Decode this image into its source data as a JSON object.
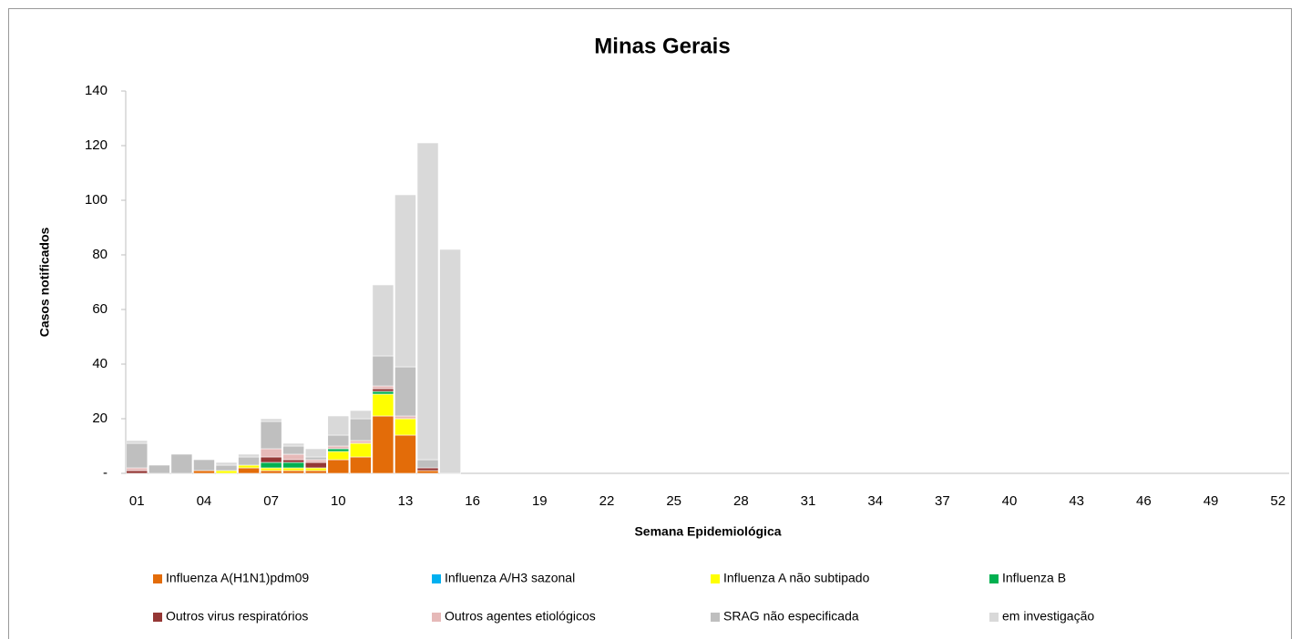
{
  "chart_data": {
    "type": "stacked_bar",
    "title": "Minas Gerais",
    "y_label": "Casos notificados",
    "x_label": "Semana Epidemiológica",
    "categories": [
      "01",
      null,
      null,
      "04",
      null,
      null,
      "07",
      null,
      null,
      "10",
      null,
      null,
      "13",
      null,
      null,
      "16",
      null,
      null,
      "19",
      null,
      null,
      "22",
      null,
      null,
      "25",
      null,
      null,
      "28",
      null,
      null,
      "31",
      null,
      null,
      "34",
      null,
      null,
      "37",
      null,
      null,
      "40",
      null,
      null,
      "43",
      null,
      null,
      "46",
      null,
      null,
      "49",
      null,
      null,
      "52"
    ],
    "ylim": [
      0,
      140
    ],
    "yticks": [
      {
        "value": 0,
        "label": "-"
      },
      20,
      40,
      60,
      80,
      100,
      120,
      140
    ],
    "series": [
      {
        "name": "Influenza A(H1N1)pdm09",
        "color": "#e36c09",
        "values": [
          0,
          0,
          0,
          1,
          0,
          2,
          1,
          1,
          1,
          5,
          6,
          21,
          14,
          1,
          0,
          null,
          null,
          null,
          null,
          null,
          null,
          null,
          null,
          null,
          null,
          null,
          null,
          null,
          null,
          null,
          null,
          null,
          null,
          null,
          null,
          null,
          null,
          null,
          null,
          null,
          null,
          null,
          null,
          null,
          null,
          null,
          null,
          null,
          null,
          null,
          null,
          null
        ]
      },
      {
        "name": "Influenza A/H3 sazonal",
        "color": "#00b0f0",
        "values": [
          0,
          0,
          0,
          0,
          0,
          0,
          0,
          0,
          0,
          0,
          0,
          0,
          0,
          0,
          0,
          null,
          null,
          null,
          null,
          null,
          null,
          null,
          null,
          null,
          null,
          null,
          null,
          null,
          null,
          null,
          null,
          null,
          null,
          null,
          null,
          null,
          null,
          null,
          null,
          null,
          null,
          null,
          null,
          null,
          null,
          null,
          null,
          null,
          null,
          null,
          null,
          null
        ]
      },
      {
        "name": "Influenza A não subtipado",
        "color": "#ffff00",
        "values": [
          0,
          0,
          0,
          0,
          1,
          1,
          1,
          1,
          1,
          3,
          5,
          8,
          6,
          0,
          0,
          null,
          null,
          null,
          null,
          null,
          null,
          null,
          null,
          null,
          null,
          null,
          null,
          null,
          null,
          null,
          null,
          null,
          null,
          null,
          null,
          null,
          null,
          null,
          null,
          null,
          null,
          null,
          null,
          null,
          null,
          null,
          null,
          null,
          null,
          null,
          null,
          null
        ]
      },
      {
        "name": "Influenza B",
        "color": "#00b050",
        "values": [
          0,
          0,
          0,
          0,
          0,
          0,
          2,
          2,
          0,
          1,
          0,
          1,
          0,
          0,
          0,
          null,
          null,
          null,
          null,
          null,
          null,
          null,
          null,
          null,
          null,
          null,
          null,
          null,
          null,
          null,
          null,
          null,
          null,
          null,
          null,
          null,
          null,
          null,
          null,
          null,
          null,
          null,
          null,
          null,
          null,
          null,
          null,
          null,
          null,
          null,
          null,
          null
        ]
      },
      {
        "name": "Outros virus respiratórios",
        "color": "#953735",
        "values": [
          1,
          0,
          0,
          0,
          0,
          0,
          2,
          1,
          2,
          0,
          0,
          1,
          0,
          1,
          0,
          null,
          null,
          null,
          null,
          null,
          null,
          null,
          null,
          null,
          null,
          null,
          null,
          null,
          null,
          null,
          null,
          null,
          null,
          null,
          null,
          null,
          null,
          null,
          null,
          null,
          null,
          null,
          null,
          null,
          null,
          null,
          null,
          null,
          null,
          null,
          null,
          null
        ]
      },
      {
        "name": "Outros agentes etiológicos",
        "color": "#e6b9b8",
        "values": [
          1,
          0,
          0,
          0,
          0,
          0,
          3,
          2,
          1,
          1,
          1,
          1,
          1,
          0,
          0,
          null,
          null,
          null,
          null,
          null,
          null,
          null,
          null,
          null,
          null,
          null,
          null,
          null,
          null,
          null,
          null,
          null,
          null,
          null,
          null,
          null,
          null,
          null,
          null,
          null,
          null,
          null,
          null,
          null,
          null,
          null,
          null,
          null,
          null,
          null,
          null,
          null
        ]
      },
      {
        "name": "SRAG não especificada",
        "color": "#bfbfbf",
        "values": [
          9,
          3,
          7,
          4,
          2,
          3,
          10,
          3,
          1,
          4,
          8,
          11,
          18,
          3,
          0,
          null,
          null,
          null,
          null,
          null,
          null,
          null,
          null,
          null,
          null,
          null,
          null,
          null,
          null,
          null,
          null,
          null,
          null,
          null,
          null,
          null,
          null,
          null,
          null,
          null,
          null,
          null,
          null,
          null,
          null,
          null,
          null,
          null,
          null,
          null,
          null,
          null
        ]
      },
      {
        "name": "em investigação",
        "color": "#d9d9d9",
        "values": [
          1,
          0,
          0,
          0,
          1,
          1,
          1,
          1,
          3,
          7,
          3,
          26,
          63,
          116,
          82,
          null,
          null,
          null,
          null,
          null,
          null,
          null,
          null,
          null,
          null,
          null,
          null,
          null,
          null,
          null,
          null,
          null,
          null,
          null,
          null,
          null,
          null,
          null,
          null,
          null,
          null,
          null,
          null,
          null,
          null,
          null,
          null,
          null,
          null,
          null,
          null,
          null
        ]
      }
    ]
  }
}
